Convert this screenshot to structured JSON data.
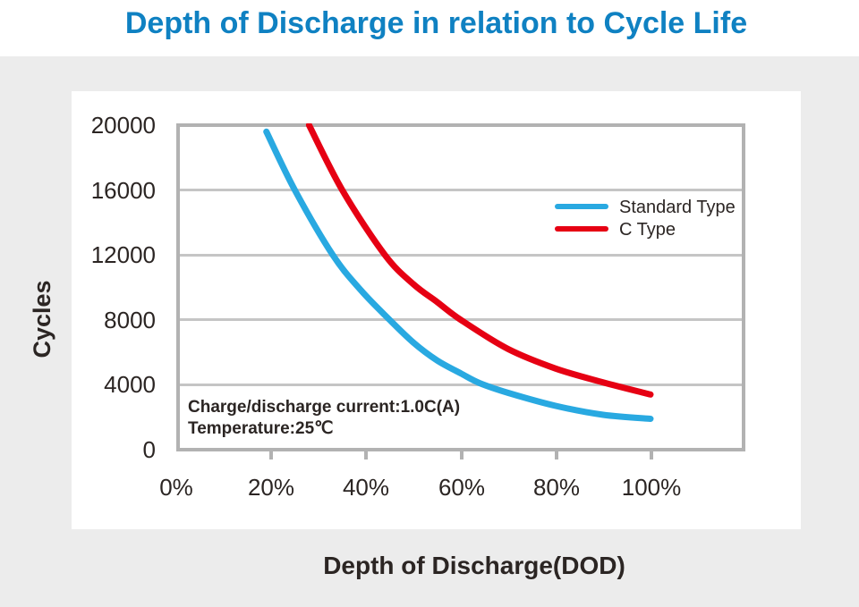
{
  "page": {
    "title": "Depth of Discharge in relation to Cycle Life",
    "colors": {
      "title_blue": "#0f81c2",
      "background_gray": "#ececec",
      "card_white": "#ffffff",
      "grid_gray": "#c5c5c5",
      "frame_gray": "#b2b2b2",
      "text_dark": "#2b2523",
      "standard_type_blue": "#29a9e1",
      "c_type_red": "#e60013"
    }
  },
  "chart_data": {
    "type": "line",
    "title": "Depth of Discharge in relation to Cycle Life",
    "xlabel": "Depth of Discharge(DOD)",
    "ylabel": "Cycles",
    "xlim": [
      0,
      120
    ],
    "ylim": [
      0,
      20000
    ],
    "grid": "horizontal",
    "legend_position": "upper-right-inside",
    "x_ticks": [
      {
        "value": 0,
        "label": "0%"
      },
      {
        "value": 20,
        "label": "20%"
      },
      {
        "value": 40,
        "label": "40%"
      },
      {
        "value": 60,
        "label": "60%"
      },
      {
        "value": 80,
        "label": "80%"
      },
      {
        "value": 100,
        "label": "100%"
      }
    ],
    "y_ticks": [
      {
        "value": 20000,
        "label": "20000"
      },
      {
        "value": 16000,
        "label": "16000"
      },
      {
        "value": 12000,
        "label": "12000"
      },
      {
        "value": 8000,
        "label": "8000"
      },
      {
        "value": 4000,
        "label": "4000"
      },
      {
        "value": 0,
        "label": "0"
      }
    ],
    "annotation": {
      "line1": "Charge/discharge current:1.0C(A)",
      "line2": "Temperature:25℃"
    },
    "series": [
      {
        "name": "Standard Type",
        "color": "#29a9e1",
        "points_dod_pct_vs_cycles": [
          [
            19,
            19600
          ],
          [
            25,
            16000
          ],
          [
            33,
            12000
          ],
          [
            39,
            9800
          ],
          [
            45,
            8000
          ],
          [
            50,
            6600
          ],
          [
            55,
            5500
          ],
          [
            60,
            4700
          ],
          [
            64,
            4100
          ],
          [
            70,
            3500
          ],
          [
            80,
            2700
          ],
          [
            90,
            2150
          ],
          [
            100,
            1900
          ]
        ]
      },
      {
        "name": "C Type",
        "color": "#e60013",
        "points_dod_pct_vs_cycles": [
          [
            28,
            20000
          ],
          [
            35,
            16000
          ],
          [
            44,
            12000
          ],
          [
            50,
            10200
          ],
          [
            55,
            9100
          ],
          [
            60,
            8000
          ],
          [
            70,
            6200
          ],
          [
            80,
            5000
          ],
          [
            90,
            4150
          ],
          [
            100,
            3400
          ]
        ]
      }
    ]
  }
}
